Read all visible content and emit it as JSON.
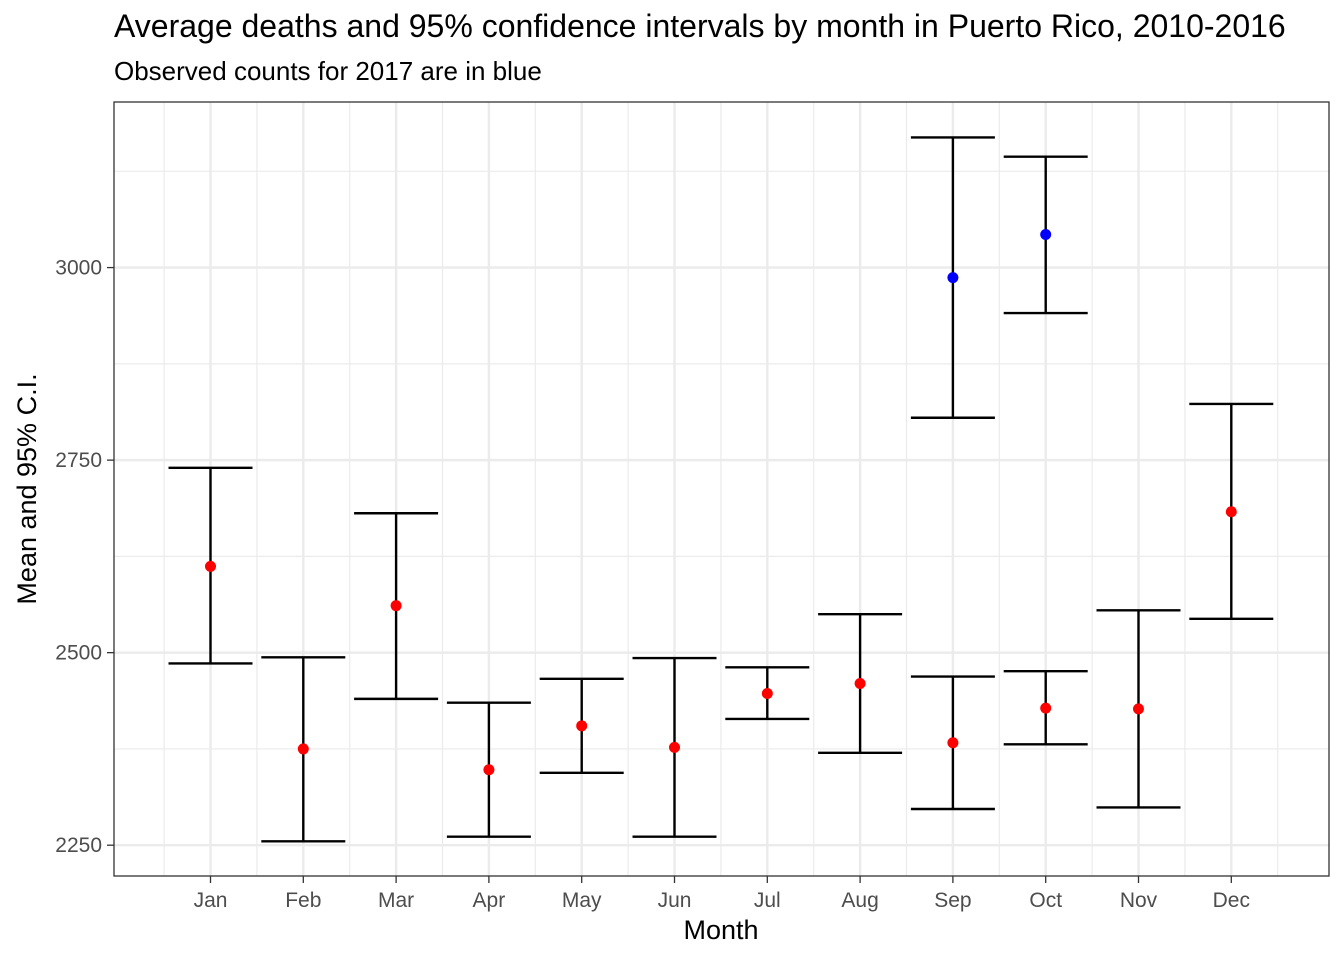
{
  "title": "Average deaths and 95% confidence intervals by month in Puerto Rico, 2010-2016",
  "subtitle": "Observed counts for 2017 are in blue",
  "chart_data": {
    "type": "errorbar",
    "xlabel": "Month",
    "ylabel": "Mean and 95% C.I.",
    "ylim": [
      2210,
      3215
    ],
    "yticks": [
      2250,
      2500,
      2750,
      3000
    ],
    "grid": true,
    "categories": [
      "Jan",
      "Feb",
      "Mar",
      "Apr",
      "May",
      "Jun",
      "Jul",
      "Aug",
      "Sep",
      "Oct",
      "Nov",
      "Dec"
    ],
    "series": [
      {
        "color": "#ff0000",
        "points": [
          {
            "month": "Jan",
            "mean": 2612,
            "lower": 2486,
            "upper": 2740
          },
          {
            "month": "Feb",
            "mean": 2375,
            "lower": 2255,
            "upper": 2494
          },
          {
            "month": "Mar",
            "mean": 2561,
            "lower": 2440,
            "upper": 2681
          },
          {
            "month": "Apr",
            "mean": 2348,
            "lower": 2261,
            "upper": 2435
          },
          {
            "month": "May",
            "mean": 2405,
            "lower": 2344,
            "upper": 2466
          },
          {
            "month": "Jun",
            "mean": 2377,
            "lower": 2261,
            "upper": 2493
          },
          {
            "month": "Jul",
            "mean": 2447,
            "lower": 2414,
            "upper": 2481
          },
          {
            "month": "Aug",
            "mean": 2460,
            "lower": 2370,
            "upper": 2550
          },
          {
            "month": "Sep",
            "mean": 2383,
            "lower": 2297,
            "upper": 2469
          },
          {
            "month": "Oct",
            "mean": 2428,
            "lower": 2381,
            "upper": 2476
          },
          {
            "month": "Nov",
            "mean": 2427,
            "lower": 2299,
            "upper": 2555
          },
          {
            "month": "Dec",
            "mean": 2683,
            "lower": 2544,
            "upper": 2823
          }
        ]
      },
      {
        "color": "#0000ff",
        "points": [
          {
            "month": "Sep",
            "mean": 2987,
            "lower": 2805,
            "upper": 3169
          },
          {
            "month": "Oct",
            "mean": 3043,
            "lower": 2941,
            "upper": 3144
          }
        ]
      }
    ]
  }
}
